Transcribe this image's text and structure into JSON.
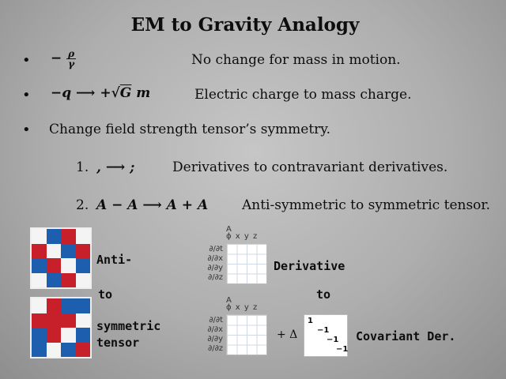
{
  "title": "EM to Gravity Analogy",
  "bullets": {
    "b1": {
      "mark": "•",
      "math_num": "ρ",
      "math_den": "γ",
      "math_prefix": "−",
      "text": "No change for mass in motion."
    },
    "b2": {
      "mark": "•",
      "math": "−q ⟶ +",
      "root": "G",
      "math_tail": " m",
      "text": "Electric charge to mass charge."
    },
    "b3": {
      "mark": "•",
      "text": "Change field strength tensor’s symmetry."
    }
  },
  "items": {
    "i1": {
      "num": "1.",
      "math": ", ⟶ ;",
      "text": "Derivatives to contravariant derivatives."
    },
    "i2": {
      "num": "2.",
      "math": "A − A ⟶ A + A",
      "text": "Anti-symmetric to symmetric tensor."
    }
  },
  "figure": {
    "label_anti": "Anti-",
    "label_to_left": "to",
    "label_symmetric": "symmetric",
    "label_tensor": "tensor",
    "label_derivative": "Derivative",
    "label_to_right": "to",
    "label_covariant": "Covariant Der.",
    "plus_delta": "+ Δ",
    "grid_header": "ϕ x y z",
    "grid_header_A": "A",
    "deriv_rows": [
      "∂/∂t",
      "∂/∂x",
      "∂/∂y",
      "∂/∂z"
    ],
    "matrix_diag": [
      "1",
      "−1",
      "−1",
      "−1"
    ],
    "colors": {
      "red": "#c8202a",
      "blue": "#1d5fae",
      "white": "#f4f4f4"
    }
  }
}
